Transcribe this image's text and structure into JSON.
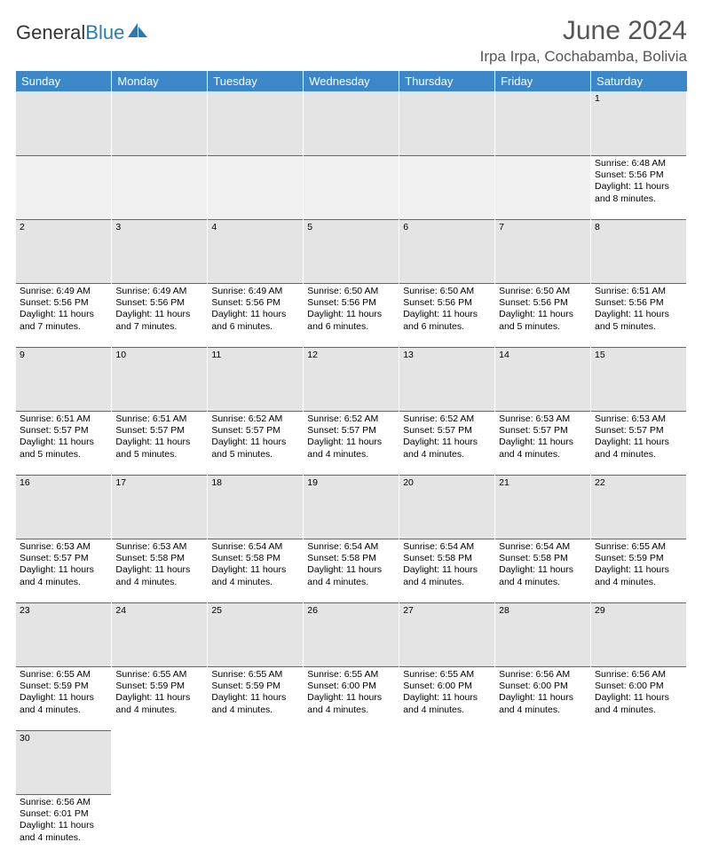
{
  "brand": {
    "part1": "General",
    "part2": "Blue"
  },
  "title": "June 2024",
  "location": "Irpa Irpa, Cochabamba, Bolivia",
  "colors": {
    "header_bg": "#3b87c8",
    "header_text": "#ffffff",
    "daynum_bg": "#e4e4e4",
    "row_divider": "#5a8fb8",
    "brand_blue": "#2a7ab0"
  },
  "daysOfWeek": [
    "Sunday",
    "Monday",
    "Tuesday",
    "Wednesday",
    "Thursday",
    "Friday",
    "Saturday"
  ],
  "weeks": [
    [
      null,
      null,
      null,
      null,
      null,
      null,
      {
        "n": "1",
        "sr": "Sunrise: 6:48 AM",
        "ss": "Sunset: 5:56 PM",
        "d1": "Daylight: 11 hours",
        "d2": "and 8 minutes."
      }
    ],
    [
      {
        "n": "2",
        "sr": "Sunrise: 6:49 AM",
        "ss": "Sunset: 5:56 PM",
        "d1": "Daylight: 11 hours",
        "d2": "and 7 minutes."
      },
      {
        "n": "3",
        "sr": "Sunrise: 6:49 AM",
        "ss": "Sunset: 5:56 PM",
        "d1": "Daylight: 11 hours",
        "d2": "and 7 minutes."
      },
      {
        "n": "4",
        "sr": "Sunrise: 6:49 AM",
        "ss": "Sunset: 5:56 PM",
        "d1": "Daylight: 11 hours",
        "d2": "and 6 minutes."
      },
      {
        "n": "5",
        "sr": "Sunrise: 6:50 AM",
        "ss": "Sunset: 5:56 PM",
        "d1": "Daylight: 11 hours",
        "d2": "and 6 minutes."
      },
      {
        "n": "6",
        "sr": "Sunrise: 6:50 AM",
        "ss": "Sunset: 5:56 PM",
        "d1": "Daylight: 11 hours",
        "d2": "and 6 minutes."
      },
      {
        "n": "7",
        "sr": "Sunrise: 6:50 AM",
        "ss": "Sunset: 5:56 PM",
        "d1": "Daylight: 11 hours",
        "d2": "and 5 minutes."
      },
      {
        "n": "8",
        "sr": "Sunrise: 6:51 AM",
        "ss": "Sunset: 5:56 PM",
        "d1": "Daylight: 11 hours",
        "d2": "and 5 minutes."
      }
    ],
    [
      {
        "n": "9",
        "sr": "Sunrise: 6:51 AM",
        "ss": "Sunset: 5:57 PM",
        "d1": "Daylight: 11 hours",
        "d2": "and 5 minutes."
      },
      {
        "n": "10",
        "sr": "Sunrise: 6:51 AM",
        "ss": "Sunset: 5:57 PM",
        "d1": "Daylight: 11 hours",
        "d2": "and 5 minutes."
      },
      {
        "n": "11",
        "sr": "Sunrise: 6:52 AM",
        "ss": "Sunset: 5:57 PM",
        "d1": "Daylight: 11 hours",
        "d2": "and 5 minutes."
      },
      {
        "n": "12",
        "sr": "Sunrise: 6:52 AM",
        "ss": "Sunset: 5:57 PM",
        "d1": "Daylight: 11 hours",
        "d2": "and 4 minutes."
      },
      {
        "n": "13",
        "sr": "Sunrise: 6:52 AM",
        "ss": "Sunset: 5:57 PM",
        "d1": "Daylight: 11 hours",
        "d2": "and 4 minutes."
      },
      {
        "n": "14",
        "sr": "Sunrise: 6:53 AM",
        "ss": "Sunset: 5:57 PM",
        "d1": "Daylight: 11 hours",
        "d2": "and 4 minutes."
      },
      {
        "n": "15",
        "sr": "Sunrise: 6:53 AM",
        "ss": "Sunset: 5:57 PM",
        "d1": "Daylight: 11 hours",
        "d2": "and 4 minutes."
      }
    ],
    [
      {
        "n": "16",
        "sr": "Sunrise: 6:53 AM",
        "ss": "Sunset: 5:57 PM",
        "d1": "Daylight: 11 hours",
        "d2": "and 4 minutes."
      },
      {
        "n": "17",
        "sr": "Sunrise: 6:53 AM",
        "ss": "Sunset: 5:58 PM",
        "d1": "Daylight: 11 hours",
        "d2": "and 4 minutes."
      },
      {
        "n": "18",
        "sr": "Sunrise: 6:54 AM",
        "ss": "Sunset: 5:58 PM",
        "d1": "Daylight: 11 hours",
        "d2": "and 4 minutes."
      },
      {
        "n": "19",
        "sr": "Sunrise: 6:54 AM",
        "ss": "Sunset: 5:58 PM",
        "d1": "Daylight: 11 hours",
        "d2": "and 4 minutes."
      },
      {
        "n": "20",
        "sr": "Sunrise: 6:54 AM",
        "ss": "Sunset: 5:58 PM",
        "d1": "Daylight: 11 hours",
        "d2": "and 4 minutes."
      },
      {
        "n": "21",
        "sr": "Sunrise: 6:54 AM",
        "ss": "Sunset: 5:58 PM",
        "d1": "Daylight: 11 hours",
        "d2": "and 4 minutes."
      },
      {
        "n": "22",
        "sr": "Sunrise: 6:55 AM",
        "ss": "Sunset: 5:59 PM",
        "d1": "Daylight: 11 hours",
        "d2": "and 4 minutes."
      }
    ],
    [
      {
        "n": "23",
        "sr": "Sunrise: 6:55 AM",
        "ss": "Sunset: 5:59 PM",
        "d1": "Daylight: 11 hours",
        "d2": "and 4 minutes."
      },
      {
        "n": "24",
        "sr": "Sunrise: 6:55 AM",
        "ss": "Sunset: 5:59 PM",
        "d1": "Daylight: 11 hours",
        "d2": "and 4 minutes."
      },
      {
        "n": "25",
        "sr": "Sunrise: 6:55 AM",
        "ss": "Sunset: 5:59 PM",
        "d1": "Daylight: 11 hours",
        "d2": "and 4 minutes."
      },
      {
        "n": "26",
        "sr": "Sunrise: 6:55 AM",
        "ss": "Sunset: 6:00 PM",
        "d1": "Daylight: 11 hours",
        "d2": "and 4 minutes."
      },
      {
        "n": "27",
        "sr": "Sunrise: 6:55 AM",
        "ss": "Sunset: 6:00 PM",
        "d1": "Daylight: 11 hours",
        "d2": "and 4 minutes."
      },
      {
        "n": "28",
        "sr": "Sunrise: 6:56 AM",
        "ss": "Sunset: 6:00 PM",
        "d1": "Daylight: 11 hours",
        "d2": "and 4 minutes."
      },
      {
        "n": "29",
        "sr": "Sunrise: 6:56 AM",
        "ss": "Sunset: 6:00 PM",
        "d1": "Daylight: 11 hours",
        "d2": "and 4 minutes."
      }
    ],
    [
      {
        "n": "30",
        "sr": "Sunrise: 6:56 AM",
        "ss": "Sunset: 6:01 PM",
        "d1": "Daylight: 11 hours",
        "d2": "and 4 minutes."
      },
      null,
      null,
      null,
      null,
      null,
      null
    ]
  ]
}
